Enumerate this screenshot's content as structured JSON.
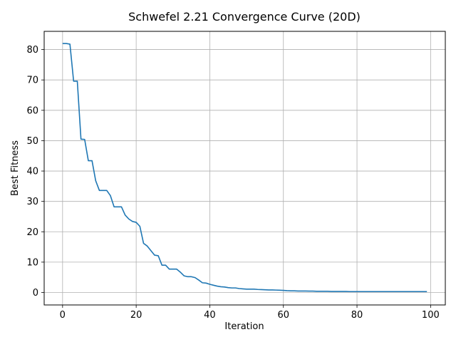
{
  "chart_data": {
    "type": "line",
    "title": "Schwefel 2.21 Convergence Curve (20D)",
    "xlabel": "Iteration",
    "ylabel": "Best Fitness",
    "xlim": [
      -5,
      104
    ],
    "ylim": [
      -4.1,
      86
    ],
    "x_ticks": [
      0,
      20,
      40,
      60,
      80,
      100
    ],
    "y_ticks": [
      0,
      10,
      20,
      30,
      40,
      50,
      60,
      70,
      80
    ],
    "grid": true,
    "series": [
      {
        "name": "",
        "color": "#1f77b4",
        "x": [
          0,
          1,
          2,
          3,
          4,
          5,
          6,
          7,
          8,
          9,
          10,
          11,
          12,
          13,
          14,
          15,
          16,
          17,
          18,
          19,
          20,
          21,
          22,
          23,
          24,
          25,
          26,
          27,
          28,
          29,
          30,
          31,
          32,
          33,
          34,
          35,
          36,
          37,
          38,
          39,
          40,
          41,
          42,
          43,
          44,
          45,
          46,
          47,
          48,
          49,
          50,
          51,
          52,
          53,
          54,
          55,
          56,
          57,
          58,
          59,
          60,
          61,
          62,
          63,
          64,
          65,
          66,
          67,
          68,
          69,
          70,
          71,
          72,
          73,
          74,
          75,
          76,
          77,
          78,
          79,
          80,
          81,
          82,
          83,
          84,
          85,
          86,
          87,
          88,
          89,
          90,
          91,
          92,
          93,
          94,
          95,
          96,
          97,
          98,
          99
        ],
        "y": [
          82.0,
          82.0,
          81.8,
          69.6,
          69.6,
          50.5,
          50.4,
          43.4,
          43.4,
          36.8,
          33.6,
          33.6,
          33.6,
          31.9,
          28.2,
          28.2,
          28.2,
          25.5,
          24.2,
          23.4,
          23.1,
          21.8,
          16.2,
          15.3,
          13.8,
          12.3,
          12.1,
          9.0,
          9.0,
          7.7,
          7.7,
          7.7,
          6.7,
          5.5,
          5.2,
          5.2,
          4.9,
          4.1,
          3.2,
          3.1,
          2.7,
          2.4,
          2.1,
          1.9,
          1.8,
          1.6,
          1.5,
          1.5,
          1.3,
          1.2,
          1.1,
          1.1,
          1.1,
          1.0,
          0.95,
          0.9,
          0.85,
          0.85,
          0.8,
          0.75,
          0.7,
          0.6,
          0.55,
          0.55,
          0.5,
          0.5,
          0.5,
          0.45,
          0.45,
          0.4,
          0.4,
          0.4,
          0.4,
          0.35,
          0.35,
          0.35,
          0.35,
          0.35,
          0.3,
          0.3,
          0.3,
          0.3,
          0.3,
          0.3,
          0.3,
          0.3,
          0.3,
          0.3,
          0.3,
          0.3,
          0.3,
          0.3,
          0.3,
          0.3,
          0.3,
          0.3,
          0.3,
          0.3,
          0.3,
          0.3
        ]
      }
    ]
  }
}
